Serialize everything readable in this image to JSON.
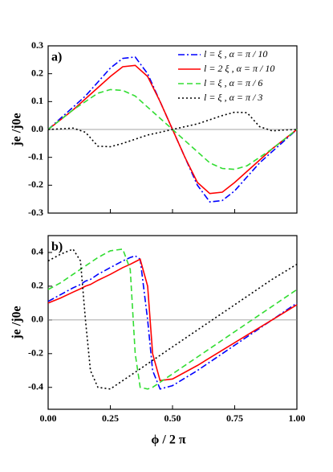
{
  "chart_data": [
    {
      "type": "line",
      "panel_label": "a)",
      "ylabel": "je /j0e",
      "legend": "upper right",
      "zero_line": true,
      "xlim": [
        0,
        1
      ],
      "ylim": [
        -0.3,
        0.3
      ],
      "yticks": [
        0.3,
        0.2,
        0.1,
        {
          "value": 0,
          "label": "0.0"
        },
        -0.1,
        -0.2,
        -0.3
      ],
      "x": [
        0,
        0.05,
        0.1,
        0.15,
        0.2,
        0.25,
        0.3,
        0.35,
        0.4,
        0.45,
        0.5,
        0.55,
        0.6,
        0.65,
        0.7,
        0.75,
        0.8,
        0.85,
        0.9,
        0.95,
        1
      ],
      "series": [
        {
          "name": "l = ξ , α = π / 10",
          "color": "#0000ff",
          "dash": "dashdot",
          "values": [
            0,
            0.04,
            0.08,
            0.12,
            0.17,
            0.22,
            0.255,
            0.26,
            0.2,
            0.1,
            0,
            -0.1,
            -0.2,
            -0.26,
            -0.255,
            -0.22,
            -0.17,
            -0.12,
            -0.08,
            -0.04,
            0
          ]
        },
        {
          "name": "l = 2 ξ , α = π / 10",
          "color": "#ff0000",
          "dash": "solid",
          "values": [
            0,
            0.035,
            0.07,
            0.11,
            0.15,
            0.19,
            0.225,
            0.23,
            0.19,
            0.1,
            0,
            -0.1,
            -0.19,
            -0.23,
            -0.225,
            -0.19,
            -0.15,
            -0.11,
            -0.07,
            -0.035,
            0
          ]
        },
        {
          "name": "l = ξ , α = π / 6",
          "color": "#33dd33",
          "dash": "dashed",
          "values": [
            0,
            0.035,
            0.07,
            0.1,
            0.13,
            0.143,
            0.14,
            0.12,
            0.08,
            0.04,
            0,
            -0.04,
            -0.08,
            -0.12,
            -0.14,
            -0.143,
            -0.13,
            -0.1,
            -0.07,
            -0.035,
            0
          ]
        },
        {
          "name": "l = ξ , α = π / 3",
          "color": "#000000",
          "dash": "dotted",
          "values": [
            0,
            0.002,
            0.005,
            -0.01,
            -0.06,
            -0.062,
            -0.05,
            -0.035,
            -0.02,
            -0.01,
            0,
            0.01,
            0.02,
            0.035,
            0.05,
            0.062,
            0.06,
            0.01,
            -0.005,
            -0.002,
            0
          ]
        }
      ]
    },
    {
      "type": "line",
      "panel_label": "b)",
      "ylabel": "je /j0e",
      "xlabel": "ϕ / 2 π",
      "zero_line": true,
      "xlim": [
        0,
        1
      ],
      "ylim": [
        -0.53,
        0.5
      ],
      "xticks": [
        {
          "value": 0,
          "label": "0.00"
        },
        0.25,
        {
          "value": 0.5,
          "label": "0.50"
        },
        0.75,
        {
          "value": 1,
          "label": "1.00"
        }
      ],
      "yticks": [
        0.4,
        0.2,
        {
          "value": 0,
          "label": "0.0"
        },
        -0.2,
        -0.4
      ],
      "x": [
        0,
        0.05,
        0.1,
        0.13,
        0.15,
        0.17,
        0.2,
        0.25,
        0.3,
        0.33,
        0.35,
        0.37,
        0.4,
        0.42,
        0.45,
        0.5,
        0.6,
        0.7,
        0.8,
        0.9,
        1
      ],
      "series": [
        {
          "color": "#0000ff",
          "dash": "dashdot",
          "values": [
            0.11,
            0.15,
            0.19,
            0.21,
            0.23,
            0.24,
            0.27,
            0.31,
            0.35,
            0.37,
            0.38,
            0.36,
            0,
            -0.3,
            -0.41,
            -0.39,
            -0.3,
            -0.2,
            -0.1,
            0,
            0.1
          ]
        },
        {
          "color": "#ff0000",
          "dash": "solid",
          "values": [
            0.1,
            0.13,
            0.165,
            0.185,
            0.2,
            0.21,
            0.235,
            0.27,
            0.31,
            0.33,
            0.345,
            0.36,
            0.2,
            -0.2,
            -0.36,
            -0.35,
            -0.27,
            -0.18,
            -0.09,
            0,
            0.09
          ]
        },
        {
          "color": "#33dd33",
          "dash": "dashed",
          "values": [
            0.18,
            0.22,
            0.27,
            0.3,
            0.32,
            0.34,
            0.37,
            0.41,
            0.42,
            0.3,
            -0.2,
            -0.4,
            -0.41,
            -0.4,
            -0.37,
            -0.32,
            -0.22,
            -0.12,
            -0.02,
            0.08,
            0.18
          ]
        },
        {
          "color": "#000000",
          "dash": "dotted",
          "values": [
            0.35,
            0.39,
            0.42,
            0.35,
            0,
            -0.3,
            -0.4,
            -0.41,
            -0.36,
            -0.33,
            -0.31,
            -0.29,
            -0.26,
            -0.24,
            -0.21,
            -0.16,
            -0.06,
            0.04,
            0.14,
            0.24,
            0.33
          ]
        }
      ]
    }
  ]
}
